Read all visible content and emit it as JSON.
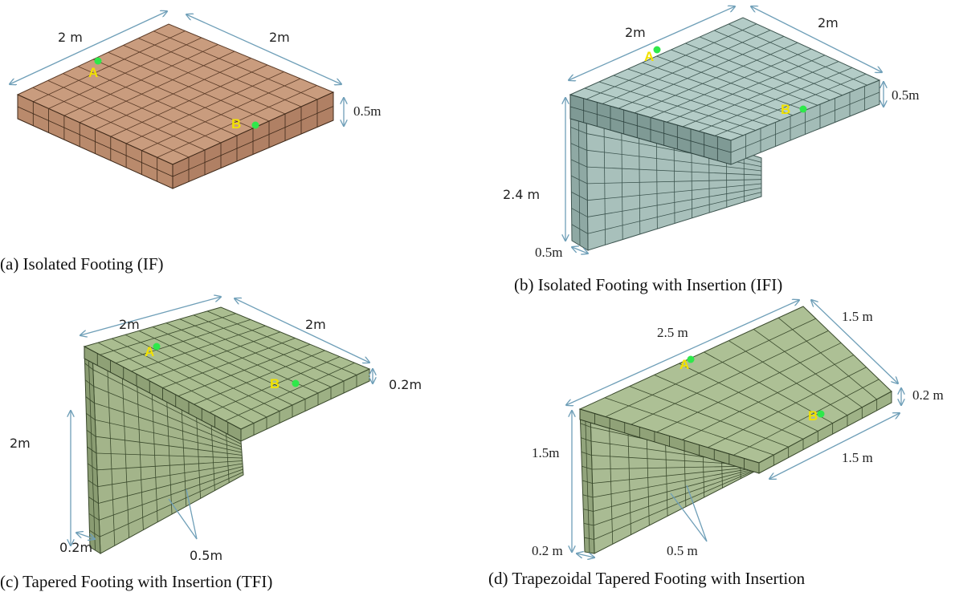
{
  "panels": [
    {
      "caption": "(a) Isolated Footing (IF)",
      "labels": [
        "2 m",
        "2m",
        "0.5m",
        "A",
        "B"
      ]
    },
    {
      "caption": "(b) Isolated Footing with Insertion (IFI)",
      "labels": [
        "2m",
        "2m",
        "0.5m",
        "2.4 m",
        "0.5m",
        "A",
        "B"
      ]
    },
    {
      "caption": "(c) Tapered Footing with Insertion (TFI)",
      "labels": [
        "2m",
        "2m",
        "0.2m",
        "2m",
        "0.2m",
        "0.5m",
        "A",
        "B"
      ]
    },
    {
      "caption": "(d) Trapezoidal Tapered Footing with Insertion",
      "labels": [
        "2.5 m",
        "1.5 m",
        "0.2 m",
        "1.5m",
        "1.5 m",
        "0.2 m",
        "0.5 m",
        "A",
        "B"
      ]
    }
  ]
}
